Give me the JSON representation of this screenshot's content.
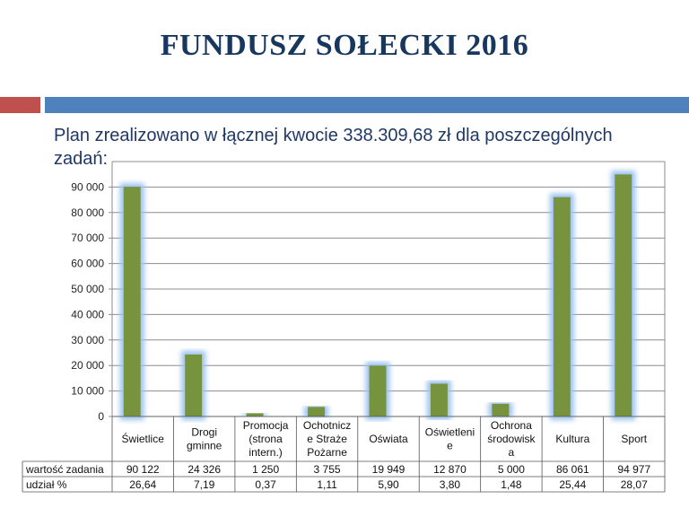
{
  "slide": {
    "title": "FUNDUSZ SOŁECKI 2016",
    "subtitle_line1": "Plan zrealizowano w łącznej kwocie 338.309,68 zł dla poszczególnych",
    "subtitle_line2": "zadań:"
  },
  "colors": {
    "bar": "#77933c",
    "glow": "#9dc3f0",
    "accent_red": "#c0504d",
    "accent_blue": "#4f81bd"
  },
  "chart_data": {
    "type": "bar",
    "categories": [
      [
        "Świetlice"
      ],
      [
        "Drogi",
        "gminne"
      ],
      [
        "Promocja",
        "(strona",
        "intern.)"
      ],
      [
        "Ochotnicz",
        "e Straże",
        "Pożarne"
      ],
      [
        "Oświata"
      ],
      [
        "Oświetleni",
        "e"
      ],
      [
        "Ochrona",
        "środowisk",
        "a"
      ],
      [
        "Kultura"
      ],
      [
        "Sport"
      ]
    ],
    "values": [
      90122,
      24326,
      1250,
      3755,
      19949,
      12870,
      5000,
      86061,
      94977
    ],
    "ylim": [
      0,
      100000
    ],
    "yticks": [
      0,
      10000,
      20000,
      30000,
      40000,
      50000,
      60000,
      70000,
      80000,
      90000
    ],
    "ytick_labels": [
      "0",
      "10 000",
      "20 000",
      "30 000",
      "40 000",
      "50 000",
      "60 000",
      "70 000",
      "80 000",
      "90 000"
    ],
    "grid": true,
    "table": {
      "rows": [
        {
          "label": "wartość zadania",
          "cells": [
            "90 122",
            "24 326",
            "1 250",
            "3 755",
            "19 949",
            "12 870",
            "5 000",
            "86 061",
            "94 977"
          ]
        },
        {
          "label": "udział %",
          "cells": [
            "26,64",
            "7,19",
            "0,37",
            "1,11",
            "5,90",
            "3,80",
            "1,48",
            "25,44",
            "28,07"
          ]
        }
      ]
    }
  }
}
